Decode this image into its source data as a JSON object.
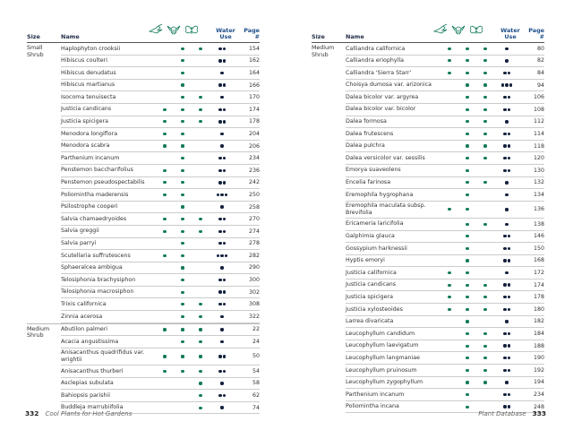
{
  "pages": [
    {
      "header": {
        "size": "Size",
        "name": "Name",
        "water": "Water Use",
        "page": "Page #"
      },
      "groups": [
        {
          "size": "Small Shrub",
          "rows": [
            {
              "name": "Haplophyton crooksii",
              "attracts": [
                false,
                true,
                true
              ],
              "water": 2,
              "page": 154
            },
            {
              "name": "Hibiscus coulteri",
              "attracts": [
                false,
                true,
                false
              ],
              "water": 2,
              "page": 162
            },
            {
              "name": "Hibiscus denudatus",
              "attracts": [
                false,
                true,
                false
              ],
              "water": 1,
              "page": 164
            },
            {
              "name": "Hibiscus martianus",
              "attracts": [
                false,
                true,
                false
              ],
              "water": 2,
              "page": 166
            },
            {
              "name": "Isocoma tenuisecta",
              "attracts": [
                false,
                true,
                true
              ],
              "water": 1,
              "page": 170
            },
            {
              "name": "Justicia candicans",
              "attracts": [
                true,
                true,
                true
              ],
              "water": 2,
              "page": 174
            },
            {
              "name": "Justicia spicigera",
              "attracts": [
                true,
                true,
                true
              ],
              "water": 2,
              "page": 178
            },
            {
              "name": "Menodora longiflora",
              "attracts": [
                true,
                true,
                false
              ],
              "water": 1,
              "page": 204
            },
            {
              "name": "Menodora scabra",
              "attracts": [
                true,
                true,
                false
              ],
              "water": 1,
              "page": 206
            },
            {
              "name": "Parthenium incanum",
              "attracts": [
                false,
                true,
                false
              ],
              "water": 2,
              "page": 234
            },
            {
              "name": "Penstemon baccharifolius",
              "attracts": [
                true,
                true,
                false
              ],
              "water": 2,
              "page": 236
            },
            {
              "name": "Penstemon pseudospectabilis",
              "attracts": [
                true,
                true,
                false
              ],
              "water": 2,
              "page": 242
            },
            {
              "name": "Poliomintha maderensis",
              "attracts": [
                true,
                true,
                false
              ],
              "water": 3,
              "page": 250
            },
            {
              "name": "Psilostrophe cooperi",
              "attracts": [
                false,
                true,
                false
              ],
              "water": 1,
              "page": 258
            },
            {
              "name": "Salvia chamaedryoides",
              "attracts": [
                true,
                true,
                true
              ],
              "water": 2,
              "page": 270
            },
            {
              "name": "Salvia greggii",
              "attracts": [
                true,
                true,
                true
              ],
              "water": 2,
              "page": 274
            },
            {
              "name": "Salvia parryi",
              "attracts": [
                false,
                true,
                false
              ],
              "water": 2,
              "page": 278
            },
            {
              "name": "Scutellaria suffrutescens",
              "attracts": [
                true,
                true,
                false
              ],
              "water": 3,
              "page": 282
            },
            {
              "name": "Sphaeralcea ambigua",
              "attracts": [
                false,
                true,
                false
              ],
              "water": 1,
              "page": 290
            },
            {
              "name": "Telosiphonia brachysiphon",
              "attracts": [
                false,
                true,
                false
              ],
              "water": 2,
              "page": 300
            },
            {
              "name": "Telosiphonia macrosiphon",
              "attracts": [
                false,
                true,
                false
              ],
              "water": 2,
              "page": 302
            },
            {
              "name": "Trixis californica",
              "attracts": [
                false,
                true,
                true
              ],
              "water": 2,
              "page": 308
            },
            {
              "name": "Zinnia acerosa",
              "attracts": [
                false,
                true,
                true
              ],
              "water": 1,
              "page": 322
            }
          ]
        },
        {
          "size": "Medium Shrub",
          "rows": [
            {
              "name": "Abutilon palmeri",
              "attracts": [
                true,
                true,
                true
              ],
              "water": 1,
              "page": 22
            },
            {
              "name": "Acacia angustissima",
              "attracts": [
                false,
                true,
                true
              ],
              "water": 1,
              "page": 24
            },
            {
              "name": "Anisacanthus quadrifidus var. wrightii",
              "attracts": [
                true,
                true,
                true
              ],
              "water": 2,
              "page": 50
            },
            {
              "name": "Anisacanthus thurberi",
              "attracts": [
                true,
                true,
                true
              ],
              "water": 2,
              "page": 54
            },
            {
              "name": "Asclepias subulata",
              "attracts": [
                false,
                false,
                true
              ],
              "water": 1,
              "page": 58
            },
            {
              "name": "Bahiopsis parishii",
              "attracts": [
                false,
                false,
                true
              ],
              "water": 2,
              "page": 62
            },
            {
              "name": "Buddleja marrubiifolia",
              "attracts": [
                false,
                false,
                true
              ],
              "water": 1,
              "page": 74
            }
          ]
        }
      ],
      "footer": {
        "number": "332",
        "title": "Cool Plants for Hot Gardens"
      }
    },
    {
      "header": {
        "size": "Size",
        "name": "Name",
        "water": "Water Use",
        "page": "Page #"
      },
      "groups": [
        {
          "size": "Medium Shrub",
          "rows": [
            {
              "name": "Calliandra californica",
              "attracts": [
                true,
                true,
                true
              ],
              "water": 1,
              "page": 80
            },
            {
              "name": "Calliandra eriophylla",
              "attracts": [
                true,
                true,
                true
              ],
              "water": 1,
              "page": 82
            },
            {
              "name": "Calliandra 'Sierra Starr'",
              "attracts": [
                true,
                true,
                true
              ],
              "water": 2,
              "page": 84
            },
            {
              "name": "Choisya dumosa var. arizonica",
              "attracts": [
                false,
                true,
                true
              ],
              "water": 3,
              "page": 94
            },
            {
              "name": "Dalea bicolor var. argyrea",
              "attracts": [
                false,
                true,
                true
              ],
              "water": 2,
              "page": 106
            },
            {
              "name": "Dalea bicolor var. bicolor",
              "attracts": [
                false,
                true,
                true
              ],
              "water": 2,
              "page": 108
            },
            {
              "name": "Dalea formosa",
              "attracts": [
                false,
                true,
                true
              ],
              "water": 1,
              "page": 112
            },
            {
              "name": "Dalea frutescens",
              "attracts": [
                false,
                true,
                true
              ],
              "water": 2,
              "page": 114
            },
            {
              "name": "Dalea pulchra",
              "attracts": [
                false,
                true,
                true
              ],
              "water": 2,
              "page": 118
            },
            {
              "name": "Dalea versicolor var. sessilis",
              "attracts": [
                false,
                true,
                true
              ],
              "water": 2,
              "page": 120
            },
            {
              "name": "Emorya suaveolens",
              "attracts": [
                false,
                true,
                false
              ],
              "water": 2,
              "page": 130
            },
            {
              "name": "Encelia farinosa",
              "attracts": [
                false,
                true,
                true
              ],
              "water": 1,
              "page": 132
            },
            {
              "name": "Eremophila hygrophana",
              "attracts": [
                false,
                true,
                false
              ],
              "water": 1,
              "page": 134
            },
            {
              "name": "Eremophila maculata subsp. Brevifolia",
              "attracts": [
                true,
                true,
                false
              ],
              "water": 1,
              "page": 136
            },
            {
              "name": "Ericameria laricifolia",
              "attracts": [
                false,
                true,
                true
              ],
              "water": 1,
              "page": 138
            },
            {
              "name": "Galphimia glauca",
              "attracts": [
                false,
                true,
                false
              ],
              "water": 2,
              "page": 146
            },
            {
              "name": "Gossypium harknessii",
              "attracts": [
                false,
                true,
                false
              ],
              "water": 2,
              "page": 150
            },
            {
              "name": "Hyptis emoryi",
              "attracts": [
                false,
                true,
                false
              ],
              "water": 2,
              "page": 168
            },
            {
              "name": "Justicia californica",
              "attracts": [
                true,
                true,
                false
              ],
              "water": 1,
              "page": 172
            },
            {
              "name": "Justicia candicans",
              "attracts": [
                true,
                true,
                true
              ],
              "water": 2,
              "page": 174
            },
            {
              "name": "Justicia spicigera",
              "attracts": [
                true,
                true,
                true
              ],
              "water": 2,
              "page": 178
            },
            {
              "name": "Justicia xylosteoides",
              "attracts": [
                true,
                true,
                true
              ],
              "water": 2,
              "page": 180
            },
            {
              "name": "Larrea divaricata",
              "attracts": [
                false,
                true,
                false
              ],
              "water": 1,
              "page": 182
            },
            {
              "name": "Leucophyllum candidum",
              "attracts": [
                false,
                true,
                true
              ],
              "water": 2,
              "page": 184
            },
            {
              "name": "Leucophyllum laevigatum",
              "attracts": [
                false,
                true,
                true
              ],
              "water": 2,
              "page": 188
            },
            {
              "name": "Leucophyllum langmaniae",
              "attracts": [
                false,
                true,
                true
              ],
              "water": 2,
              "page": 190
            },
            {
              "name": "Leucophyllum pruinosum",
              "attracts": [
                false,
                true,
                true
              ],
              "water": 2,
              "page": 192
            },
            {
              "name": "Leucophyllum zygophyllum",
              "attracts": [
                false,
                true,
                true
              ],
              "water": 1,
              "page": 194
            },
            {
              "name": "Parthenium incanum",
              "attracts": [
                false,
                true,
                false
              ],
              "water": 2,
              "page": 234
            },
            {
              "name": "Poliomintha incana",
              "attracts": [
                false,
                true,
                false
              ],
              "water": 2,
              "page": 248
            }
          ]
        }
      ],
      "footer": {
        "number": "333",
        "title": "Plant Database"
      }
    }
  ]
}
